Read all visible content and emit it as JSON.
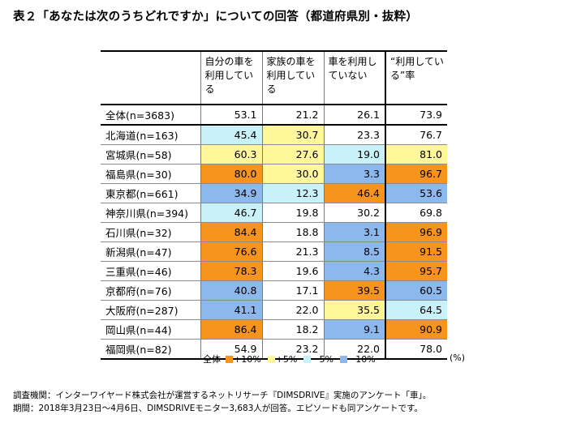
{
  "title": "表２「あなたは次のうちどれですか」についての回答（都道府県別・抜粋）",
  "colors": {
    "plus10": "#f7941d",
    "plus5": "#fff799",
    "minus5": "#c9f1f9",
    "minus10": "#8db8ee"
  },
  "headers": [
    "自分の車を利用している",
    "家族の車を利用している",
    "車を利用していない",
    "“利用している”率"
  ],
  "rows": [
    {
      "label": "全体(n=3683)",
      "values": [
        "53.1",
        "21.2",
        "26.1",
        "73.9"
      ],
      "colors": [
        "",
        "",
        "",
        ""
      ]
    },
    {
      "label": "北海道(n=163)",
      "values": [
        "45.4",
        "30.7",
        "23.3",
        "76.7"
      ],
      "colors": [
        "minus5",
        "plus5",
        "",
        ""
      ]
    },
    {
      "label": "宮城県(n=58)",
      "values": [
        "60.3",
        "27.6",
        "19.0",
        "81.0"
      ],
      "colors": [
        "plus5",
        "plus5",
        "minus5",
        "plus5"
      ]
    },
    {
      "label": "福島県(n=30)",
      "values": [
        "80.0",
        "30.0",
        "3.3",
        "96.7"
      ],
      "colors": [
        "plus10",
        "plus5",
        "minus10",
        "plus10"
      ]
    },
    {
      "label": "東京都(n=661)",
      "values": [
        "34.9",
        "12.3",
        "46.4",
        "53.6"
      ],
      "colors": [
        "minus10",
        "minus5",
        "plus10",
        "minus10"
      ]
    },
    {
      "label": "神奈川県(n=394)",
      "values": [
        "46.7",
        "19.8",
        "30.2",
        "69.8"
      ],
      "colors": [
        "minus5",
        "",
        "",
        ""
      ]
    },
    {
      "label": "石川県(n=32)",
      "values": [
        "84.4",
        "18.8",
        "3.1",
        "96.9"
      ],
      "colors": [
        "plus10",
        "",
        "minus10",
        "plus10"
      ]
    },
    {
      "label": "新潟県(n=47)",
      "values": [
        "76.6",
        "21.3",
        "8.5",
        "91.5"
      ],
      "colors": [
        "plus10",
        "",
        "minus10",
        "plus10"
      ]
    },
    {
      "label": "三重県(n=46)",
      "values": [
        "78.3",
        "19.6",
        "4.3",
        "95.7"
      ],
      "colors": [
        "plus10",
        "",
        "minus10",
        "plus10"
      ]
    },
    {
      "label": "京都府(n=76)",
      "values": [
        "40.8",
        "17.1",
        "39.5",
        "60.5"
      ],
      "colors": [
        "minus10",
        "",
        "plus10",
        "minus10"
      ]
    },
    {
      "label": "大阪府(n=287)",
      "values": [
        "41.1",
        "22.0",
        "35.5",
        "64.5"
      ],
      "colors": [
        "minus10",
        "",
        "plus5",
        "minus5"
      ]
    },
    {
      "label": "岡山県(n=44)",
      "values": [
        "86.4",
        "18.2",
        "9.1",
        "90.9"
      ],
      "colors": [
        "plus10",
        "",
        "minus10",
        "plus10"
      ]
    },
    {
      "label": "福岡県(n=82)",
      "values": [
        "54.9",
        "23.2",
        "22.0",
        "78.0"
      ],
      "colors": [
        "",
        "",
        "",
        ""
      ]
    }
  ],
  "legend": {
    "base_label": "全体",
    "items": [
      {
        "key": "plus10",
        "label": "+10%"
      },
      {
        "key": "plus5",
        "label": "+5%"
      },
      {
        "key": "minus5",
        "label": "−5%"
      },
      {
        "key": "minus10",
        "label": "−10%"
      }
    ],
    "unit": "(%)"
  },
  "notes": [
    "調査機関：インターワイヤード株式会社が運営するネットリサーチ『DIMSDRIVE』実施のアンケート「車」。",
    "期間：2018年3月23日～4月6日、DIMSDRIVEモニター3,683人が回答。エピソードも同アンケートです。"
  ]
}
